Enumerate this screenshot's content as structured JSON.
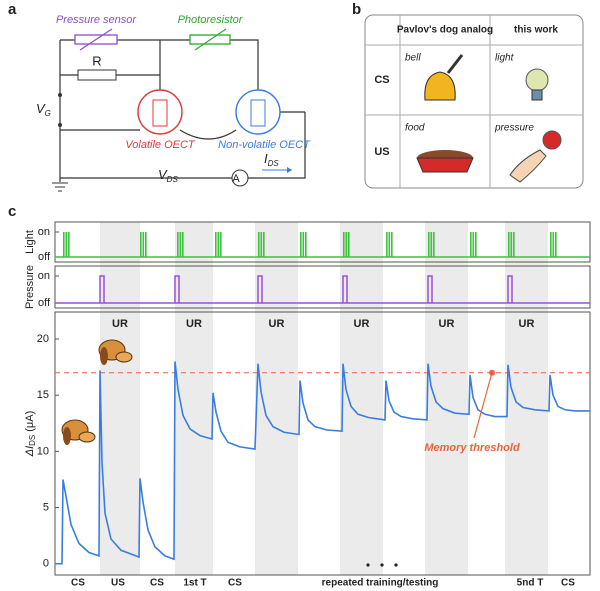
{
  "panel_a": {
    "label": "a",
    "pressure_sensor": "Pressure sensor",
    "photoresistor": "Photoresistor",
    "resistor": "R",
    "vg": {
      "symbol": "V",
      "subscript": "G"
    },
    "volatile": "Volatile OECT",
    "nonvolatile": "Non-volatile OECT",
    "ids": {
      "symbol": "I",
      "subscript": "DS"
    },
    "vds": {
      "symbol": "V",
      "subscript": "DS"
    },
    "ammeter": "A"
  },
  "panel_b": {
    "label": "b",
    "header": [
      "Pavlov's dog analog",
      "this work"
    ],
    "rows": [
      {
        "label": "CS",
        "cells": [
          "bell",
          "light"
        ]
      },
      {
        "label": "US",
        "cells": [
          "food",
          "pressure"
        ]
      }
    ]
  },
  "chart_data": {
    "type": "line",
    "label": "c",
    "light": {
      "ylabel": "Light",
      "yticks": [
        {
          "value": 0,
          "label": "off"
        },
        {
          "value": 1,
          "label": "on"
        }
      ],
      "pulses": [
        8,
        85,
        122,
        160,
        203,
        245,
        288,
        331,
        373,
        415,
        453,
        495
      ],
      "color": "#3cc23c"
    },
    "pressure": {
      "ylabel": "Pressure",
      "yticks": [
        {
          "value": 0,
          "label": "off"
        },
        {
          "value": 1,
          "label": "on"
        }
      ],
      "pulses": [
        45,
        120,
        203,
        288,
        373,
        453
      ],
      "color": "#9b4fd8"
    },
    "x": [
      0,
      7,
      8,
      11,
      16,
      24,
      34,
      44,
      45,
      47,
      50,
      56,
      66,
      84,
      85,
      88,
      93,
      100,
      110,
      119,
      120,
      123,
      128,
      135,
      145,
      157,
      158,
      161,
      166,
      173,
      185,
      200,
      203,
      206,
      211,
      218,
      229,
      244,
      245,
      248,
      253,
      260,
      272,
      287,
      288,
      291,
      296,
      303,
      314,
      330,
      331,
      334,
      339,
      346,
      358,
      372,
      373,
      376,
      381,
      388,
      400,
      414,
      415,
      418,
      423,
      430,
      440,
      452,
      453,
      456,
      461,
      468,
      480,
      494,
      495,
      498,
      503,
      510,
      520,
      535
    ],
    "values": [
      0,
      0,
      7.5,
      6.0,
      3.5,
      1.8,
      1.0,
      0.7,
      17.2,
      9,
      4.5,
      2.2,
      1.2,
      0.6,
      7.6,
      5.5,
      3,
      1.5,
      0.7,
      0.4,
      18,
      15.5,
      13.2,
      12,
      11.4,
      11.1,
      15.2,
      13.5,
      11.8,
      10.8,
      10.4,
      10.2,
      17.8,
      15.3,
      13.2,
      12.2,
      11.7,
      11.5,
      16.3,
      14.3,
      12.8,
      12.2,
      11.9,
      11.8,
      17.8,
      15.5,
      14,
      13.3,
      13,
      12.8,
      16.3,
      14.5,
      13.5,
      13.1,
      12.9,
      12.8,
      17.8,
      15.8,
      14.4,
      13.8,
      13.4,
      13.3,
      16.8,
      14.8,
      13.7,
      13.3,
      13.1,
      13.1,
      17.7,
      15.7,
      14.4,
      13.9,
      13.7,
      13.6,
      16.8,
      15,
      14,
      13.7,
      13.6,
      13.6
    ],
    "color": "#3a7de0",
    "xlim": [
      0,
      535
    ],
    "ylim": [
      -1,
      22.4
    ],
    "yticks": [
      0,
      5,
      10,
      15,
      20
    ],
    "ylabel": {
      "symbol": "ΔI",
      "subscript": "DS",
      "unit": "(μA)"
    },
    "threshold": {
      "value": 17,
      "x": 437,
      "label": "Memory threshold",
      "color": "#e8643c"
    },
    "shaded": [
      [
        45,
        85
      ],
      [
        120,
        158
      ],
      [
        200,
        243
      ],
      [
        285,
        328
      ],
      [
        370,
        413
      ],
      [
        450,
        493
      ]
    ],
    "response_labels": [
      "UR",
      "UR",
      "UR",
      "UR",
      "UR",
      "UR"
    ],
    "categories": [
      "CS",
      "US",
      "CS",
      "1st T",
      "CS",
      "repeated training/testing",
      "5nd T",
      "CS"
    ]
  }
}
